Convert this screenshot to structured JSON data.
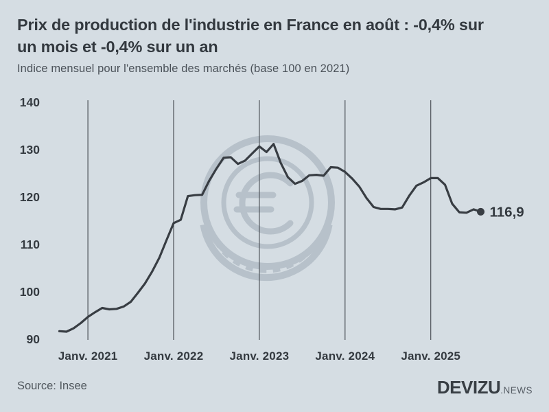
{
  "header": {
    "title_lines": [
      "Prix de production de l'industrie en France en août : -0,4% sur",
      "un mois et -0,4% sur un an"
    ],
    "subtitle": "Indice mensuel pour l'ensemble des marchés (base 100 en 2021)"
  },
  "footer": {
    "source": "Source: Insee",
    "brand": "DEVIZU",
    "brand_suffix": ".NEWS"
  },
  "colors": {
    "background": "#d5dde3",
    "line": "#383d43",
    "grid": "#4b5157",
    "tick_text": "#343a40",
    "title_text": "#33393f",
    "muted_text": "#4a5158",
    "watermark": "#b7c1ca"
  },
  "chart_data": {
    "type": "line",
    "title": "Prix de production de l'industrie en France en août : -0,4% sur un mois et -0,4% sur un an",
    "subtitle": "Indice mensuel pour l'ensemble des marchés (base 100 en 2021)",
    "source": "Insee",
    "xlabel": "",
    "ylabel": "",
    "legend": "none",
    "grid": "vertical-year-lines-only",
    "ylim": [
      88,
      142
    ],
    "yticks": [
      90,
      100,
      110,
      120,
      130,
      140
    ],
    "xticks": [
      {
        "label": "Janv. 2021",
        "index": 4
      },
      {
        "label": "Janv. 2022",
        "index": 16
      },
      {
        "label": "Janv. 2023",
        "index": 28
      },
      {
        "label": "Janv. 2024",
        "index": 40
      },
      {
        "label": "Janv. 2025",
        "index": 52
      }
    ],
    "x": [
      "2020-09",
      "2020-10",
      "2020-11",
      "2020-12",
      "2021-01",
      "2021-02",
      "2021-03",
      "2021-04",
      "2021-05",
      "2021-06",
      "2021-07",
      "2021-08",
      "2021-09",
      "2021-10",
      "2021-11",
      "2021-12",
      "2022-01",
      "2022-02",
      "2022-03",
      "2022-04",
      "2022-05",
      "2022-06",
      "2022-07",
      "2022-08",
      "2022-09",
      "2022-10",
      "2022-11",
      "2022-12",
      "2023-01",
      "2023-02",
      "2023-03",
      "2023-04",
      "2023-05",
      "2023-06",
      "2023-07",
      "2023-08",
      "2023-09",
      "2023-10",
      "2023-11",
      "2023-12",
      "2024-01",
      "2024-02",
      "2024-03",
      "2024-04",
      "2024-05",
      "2024-06",
      "2024-07",
      "2024-08",
      "2024-09",
      "2024-10",
      "2024-11",
      "2024-12",
      "2025-01",
      "2025-02",
      "2025-03",
      "2025-04",
      "2025-05",
      "2025-06",
      "2025-07",
      "2025-08"
    ],
    "values": [
      91.7,
      91.6,
      92.3,
      93.4,
      94.7,
      95.7,
      96.6,
      96.3,
      96.4,
      96.9,
      97.9,
      99.8,
      101.8,
      104.3,
      107.2,
      110.9,
      114.5,
      115.2,
      120.2,
      120.4,
      120.5,
      123.5,
      126.0,
      128.3,
      128.4,
      127.0,
      127.7,
      129.2,
      130.7,
      129.5,
      131.2,
      127.2,
      124.2,
      122.8,
      123.4,
      124.6,
      124.7,
      124.5,
      126.3,
      126.2,
      125.3,
      123.9,
      122.2,
      119.8,
      117.9,
      117.5,
      117.5,
      117.4,
      117.8,
      120.3,
      122.4,
      123.1,
      124.0,
      124.0,
      122.6,
      118.6,
      116.8,
      116.7,
      117.4,
      116.9
    ],
    "end_label": "116,9",
    "last_point": {
      "x": "2025-08",
      "value": 116.9
    }
  }
}
